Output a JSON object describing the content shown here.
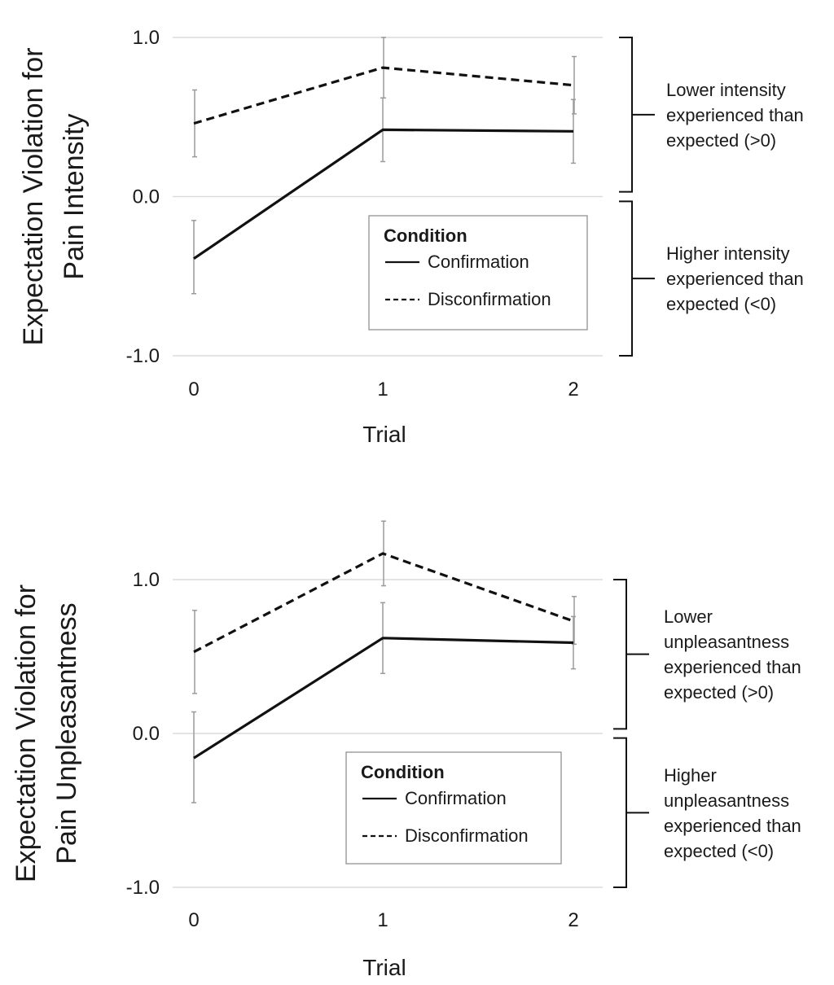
{
  "chart_data": [
    {
      "type": "line",
      "ylabel_lines": [
        "Expectation Violation for",
        "Pain Intensity"
      ],
      "xlabel": "Trial",
      "x": [
        0,
        1,
        2
      ],
      "x_tick_labels": [
        "0",
        "1",
        "2"
      ],
      "y_ticks": [
        -1.0,
        0.0,
        1.0
      ],
      "y_tick_labels": [
        "-1.0",
        "0.0",
        "1.0"
      ],
      "ylim": [
        -1.0,
        1.0
      ],
      "grid": "horizontal",
      "legend": {
        "title": "Condition",
        "placement": "center-right",
        "items": [
          "Confirmation",
          "Disconfirmation"
        ]
      },
      "series": [
        {
          "name": "Confirmation",
          "style": "solid",
          "values": [
            -0.39,
            0.42,
            0.41
          ],
          "err_low": [
            -0.61,
            0.22,
            0.21
          ],
          "err_high": [
            -0.15,
            0.62,
            0.61
          ]
        },
        {
          "name": "Disconfirmation",
          "style": "dashed",
          "values": [
            0.46,
            0.81,
            0.7
          ],
          "err_low": [
            0.25,
            0.62,
            0.52
          ],
          "err_high": [
            0.67,
            1.0,
            0.88
          ]
        }
      ],
      "annotations": [
        {
          "range": [
            0.03,
            1.0
          ],
          "lines": [
            "Lower intensity",
            "experienced than",
            "expected (>0)"
          ]
        },
        {
          "range": [
            -1.0,
            -0.03
          ],
          "lines": [
            "Higher intensity",
            "experienced than",
            "expected (<0)"
          ]
        }
      ]
    },
    {
      "type": "line",
      "ylabel_lines": [
        "Expectation Violation for",
        "Pain Unpleasantness"
      ],
      "xlabel": "Trial",
      "x": [
        0,
        1,
        2
      ],
      "x_tick_labels": [
        "0",
        "1",
        "2"
      ],
      "y_ticks": [
        -1.0,
        0.0,
        1.0
      ],
      "y_tick_labels": [
        "-1.0",
        "0.0",
        "1.0"
      ],
      "ylim": [
        -1.0,
        1.0
      ],
      "grid": "horizontal",
      "legend": {
        "title": "Condition",
        "placement": "center-right",
        "items": [
          "Confirmation",
          "Disconfirmation"
        ]
      },
      "series": [
        {
          "name": "Confirmation",
          "style": "solid",
          "values": [
            -0.16,
            0.62,
            0.59
          ],
          "err_low": [
            -0.45,
            0.39,
            0.42
          ],
          "err_high": [
            0.14,
            0.85,
            0.76
          ]
        },
        {
          "name": "Disconfirmation",
          "style": "dashed",
          "values": [
            0.53,
            1.17,
            0.73
          ],
          "err_low": [
            0.26,
            0.96,
            0.58
          ],
          "err_high": [
            0.8,
            1.38,
            0.89
          ]
        }
      ],
      "annotations": [
        {
          "range": [
            0.03,
            1.0
          ],
          "lines": [
            "Lower",
            "unpleasantness",
            "experienced than",
            "expected (>0)"
          ]
        },
        {
          "range": [
            -1.0,
            -0.03
          ],
          "lines": [
            "Higher",
            "unpleasantness",
            "experienced than",
            "expected (<0)"
          ]
        }
      ]
    }
  ]
}
